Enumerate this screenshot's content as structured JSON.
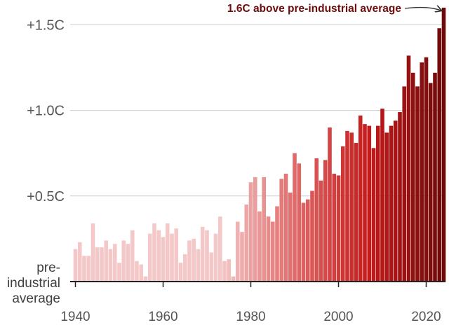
{
  "chart_data": {
    "type": "bar",
    "title": "",
    "xlabel": "",
    "ylabel": "",
    "baseline_label_lines": [
      "pre-",
      "industrial",
      "average"
    ],
    "y_ticks": [
      {
        "value": 0.5,
        "label": "+0.5C"
      },
      {
        "value": 1.0,
        "label": "+1.0C"
      },
      {
        "value": 1.5,
        "label": "+1.5C"
      }
    ],
    "x_ticks": [
      {
        "value": 1940,
        "label": "1940"
      },
      {
        "value": 1960,
        "label": "1960"
      },
      {
        "value": 1980,
        "label": "1980"
      },
      {
        "value": 2000,
        "label": "2000"
      },
      {
        "value": 2020,
        "label": "2020"
      }
    ],
    "ylim": [
      0,
      1.6
    ],
    "annotation": {
      "text": "1.6C above pre-industrial average",
      "year": 2024,
      "value": 1.6
    },
    "color_scale": [
      "#f4c8c8",
      "#e06a6a",
      "#c41a1a",
      "#6e0a0a"
    ],
    "years": [
      1940,
      1941,
      1942,
      1943,
      1944,
      1945,
      1946,
      1947,
      1948,
      1949,
      1950,
      1951,
      1952,
      1953,
      1954,
      1955,
      1956,
      1957,
      1958,
      1959,
      1960,
      1961,
      1962,
      1963,
      1964,
      1965,
      1966,
      1967,
      1968,
      1969,
      1970,
      1971,
      1972,
      1973,
      1974,
      1975,
      1976,
      1977,
      1978,
      1979,
      1980,
      1981,
      1982,
      1983,
      1984,
      1985,
      1986,
      1987,
      1988,
      1989,
      1990,
      1991,
      1992,
      1993,
      1994,
      1995,
      1996,
      1997,
      1998,
      1999,
      2000,
      2001,
      2002,
      2003,
      2004,
      2005,
      2006,
      2007,
      2008,
      2009,
      2010,
      2011,
      2012,
      2013,
      2014,
      2015,
      2016,
      2017,
      2018,
      2019,
      2020,
      2021,
      2022,
      2023,
      2024
    ],
    "values": [
      0.19,
      0.23,
      0.15,
      0.15,
      0.34,
      0.2,
      0.2,
      0.24,
      0.19,
      0.22,
      0.11,
      0.24,
      0.22,
      0.3,
      0.12,
      0.1,
      0.03,
      0.28,
      0.34,
      0.3,
      0.26,
      0.34,
      0.28,
      0.31,
      0.11,
      0.16,
      0.24,
      0.25,
      0.19,
      0.32,
      0.3,
      0.17,
      0.28,
      0.38,
      0.12,
      0.13,
      0.03,
      0.35,
      0.29,
      0.45,
      0.58,
      0.61,
      0.41,
      0.61,
      0.38,
      0.35,
      0.44,
      0.6,
      0.63,
      0.52,
      0.75,
      0.69,
      0.46,
      0.48,
      0.53,
      0.72,
      0.59,
      0.71,
      0.9,
      0.63,
      0.62,
      0.79,
      0.88,
      0.87,
      0.81,
      0.97,
      0.92,
      0.91,
      0.78,
      0.91,
      1.01,
      0.87,
      0.91,
      0.94,
      0.99,
      1.14,
      1.32,
      1.22,
      1.14,
      1.28,
      1.31,
      1.16,
      1.22,
      1.48,
      1.6
    ]
  }
}
